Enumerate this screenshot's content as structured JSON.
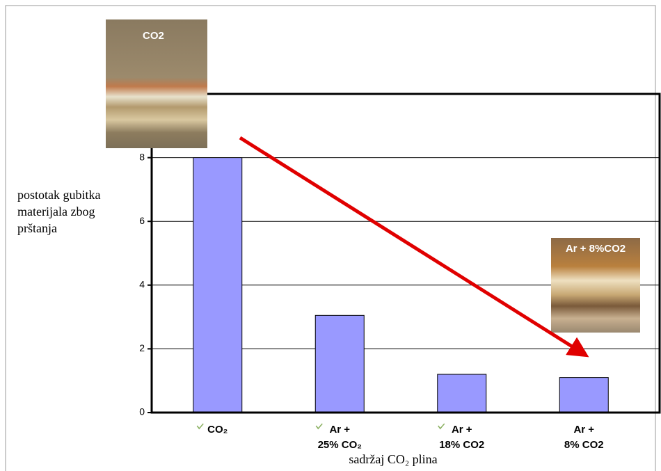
{
  "chart_data": {
    "type": "bar",
    "y_label": [
      "postotak gubitka",
      "materijala zbog",
      "prštanja"
    ],
    "x_label": "sadržaj CO₂ plina",
    "categories": [
      [
        "CO₂"
      ],
      [
        "Ar +",
        "25% CO₂"
      ],
      [
        "Ar +",
        "18% CO2"
      ],
      [
        "Ar +",
        "8% CO2"
      ]
    ],
    "checkmarks": [
      true,
      true,
      true,
      false
    ],
    "values": [
      8,
      3.05,
      1.2,
      1.1
    ],
    "color": "#9999ff",
    "ylim": [
      0,
      10
    ],
    "yticks": [
      0,
      2,
      4,
      6,
      8
    ],
    "grid": true,
    "photo_labels": [
      "CO2",
      "Ar + 8%CO2"
    ]
  }
}
